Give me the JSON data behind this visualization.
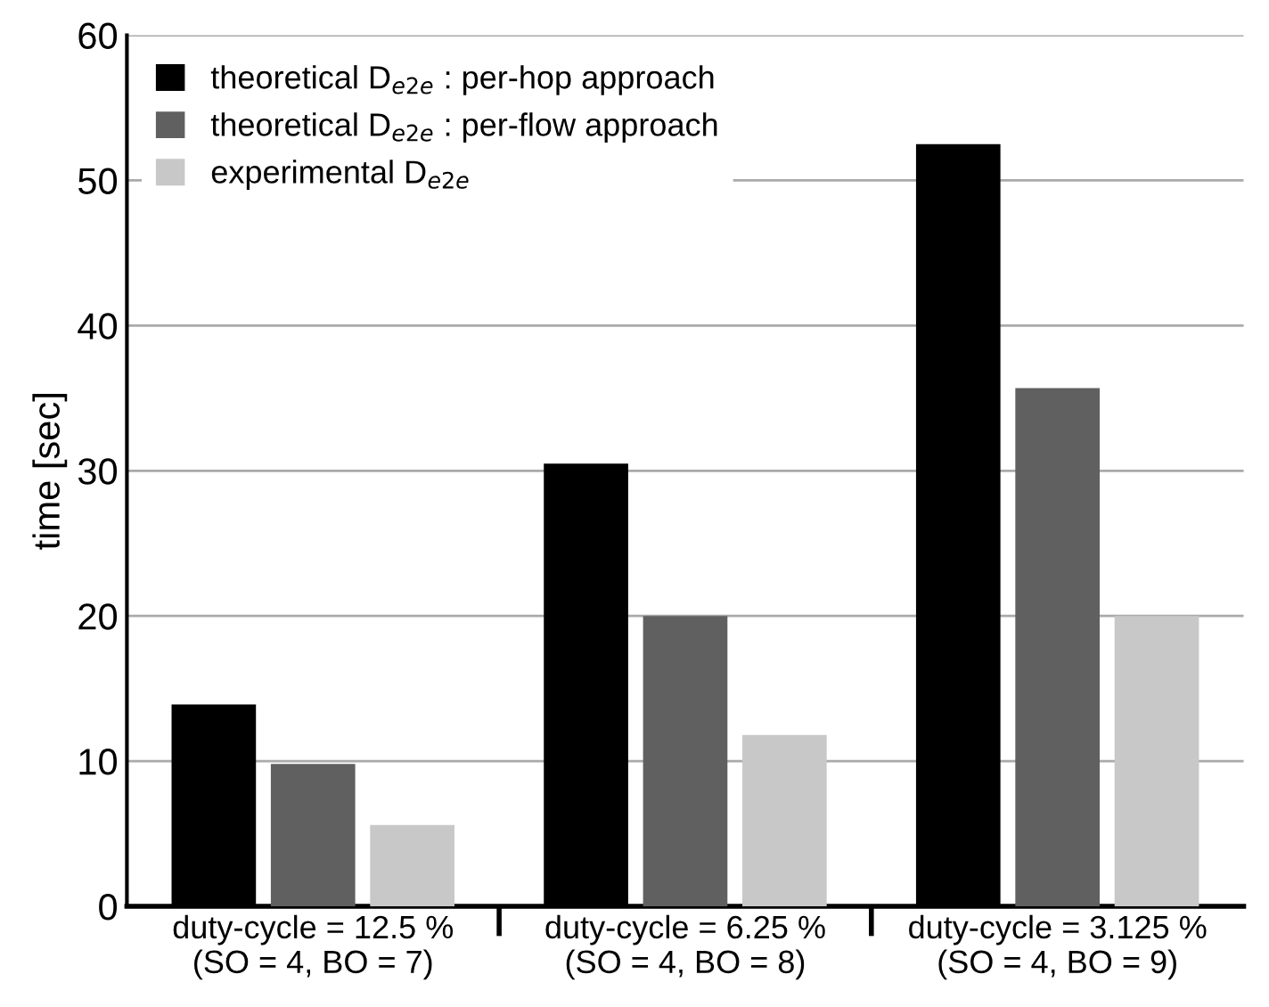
{
  "chart_data": {
    "type": "bar",
    "ylabel": "time [sec]",
    "categories": [
      "duty-cycle = 12.5 %\n(SO = 4, BO = 7)",
      "duty-cycle = 6.25 %\n(SO = 4, BO = 8)",
      "duty-cycle = 3.125 %\n(SO = 4, BO = 9)"
    ],
    "series": [
      {
        "name": "theoretical D$_{e2e}$ : per-hop approach",
        "color": "#000000",
        "values": [
          13.9,
          30.5,
          52.5
        ]
      },
      {
        "name": "theoretical D$_{e2e}$ : per-flow approach",
        "color": "#606060",
        "values": [
          9.8,
          20.0,
          35.7
        ]
      },
      {
        "name": "experimental D$_{e2e}$",
        "color": "#c8c8c8",
        "values": [
          5.6,
          11.8,
          20.0
        ]
      }
    ],
    "ylim": [
      0,
      60
    ],
    "yticks": [
      0,
      10,
      20,
      30,
      40,
      50,
      60
    ],
    "grid": "y",
    "legend": "top left"
  }
}
